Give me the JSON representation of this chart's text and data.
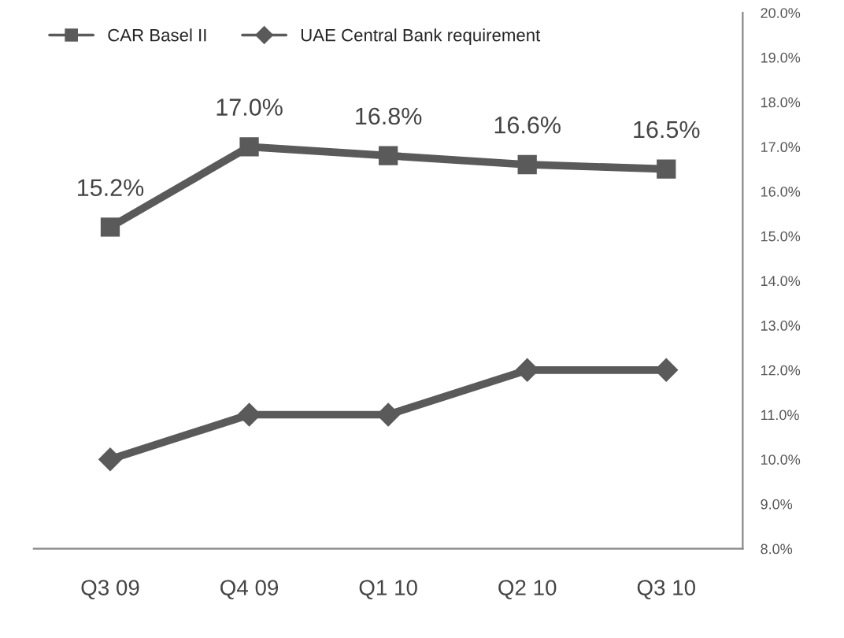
{
  "chart_data": {
    "type": "line",
    "categories": [
      "Q3 09",
      "Q4 09",
      "Q1 10",
      "Q2 10",
      "Q3 10"
    ],
    "series": [
      {
        "name": "CAR Basel II",
        "color": "#5a5a5a",
        "marker": "square",
        "values": [
          15.2,
          17.0,
          16.8,
          16.6,
          16.5
        ],
        "value_labels": [
          "15.2%",
          "17.0%",
          "16.8%",
          "16.6%",
          "16.5%"
        ]
      },
      {
        "name": "UAE Central Bank requirement",
        "color": "#5a5a5a",
        "marker": "diamond",
        "values": [
          10,
          11,
          11,
          12,
          12
        ]
      }
    ],
    "ylim": [
      8,
      20
    ],
    "yticks": [
      {
        "value": 8,
        "label": "8.0%"
      },
      {
        "value": 9,
        "label": "9.0%"
      },
      {
        "value": 10,
        "label": "10.0%"
      },
      {
        "value": 11,
        "label": "11.0%"
      },
      {
        "value": 12,
        "label": "12.0%"
      },
      {
        "value": 13,
        "label": "13.0%"
      },
      {
        "value": 14,
        "label": "14.0%"
      },
      {
        "value": 15,
        "label": "15.0%"
      },
      {
        "value": 16,
        "label": "16.0%"
      },
      {
        "value": 17,
        "label": "17.0%"
      },
      {
        "value": 18,
        "label": "18.0%"
      },
      {
        "value": 19,
        "label": "19.0%"
      },
      {
        "value": 20,
        "label": "20.0%"
      }
    ],
    "legend": "top left",
    "grid": false,
    "line_style": "solid"
  }
}
